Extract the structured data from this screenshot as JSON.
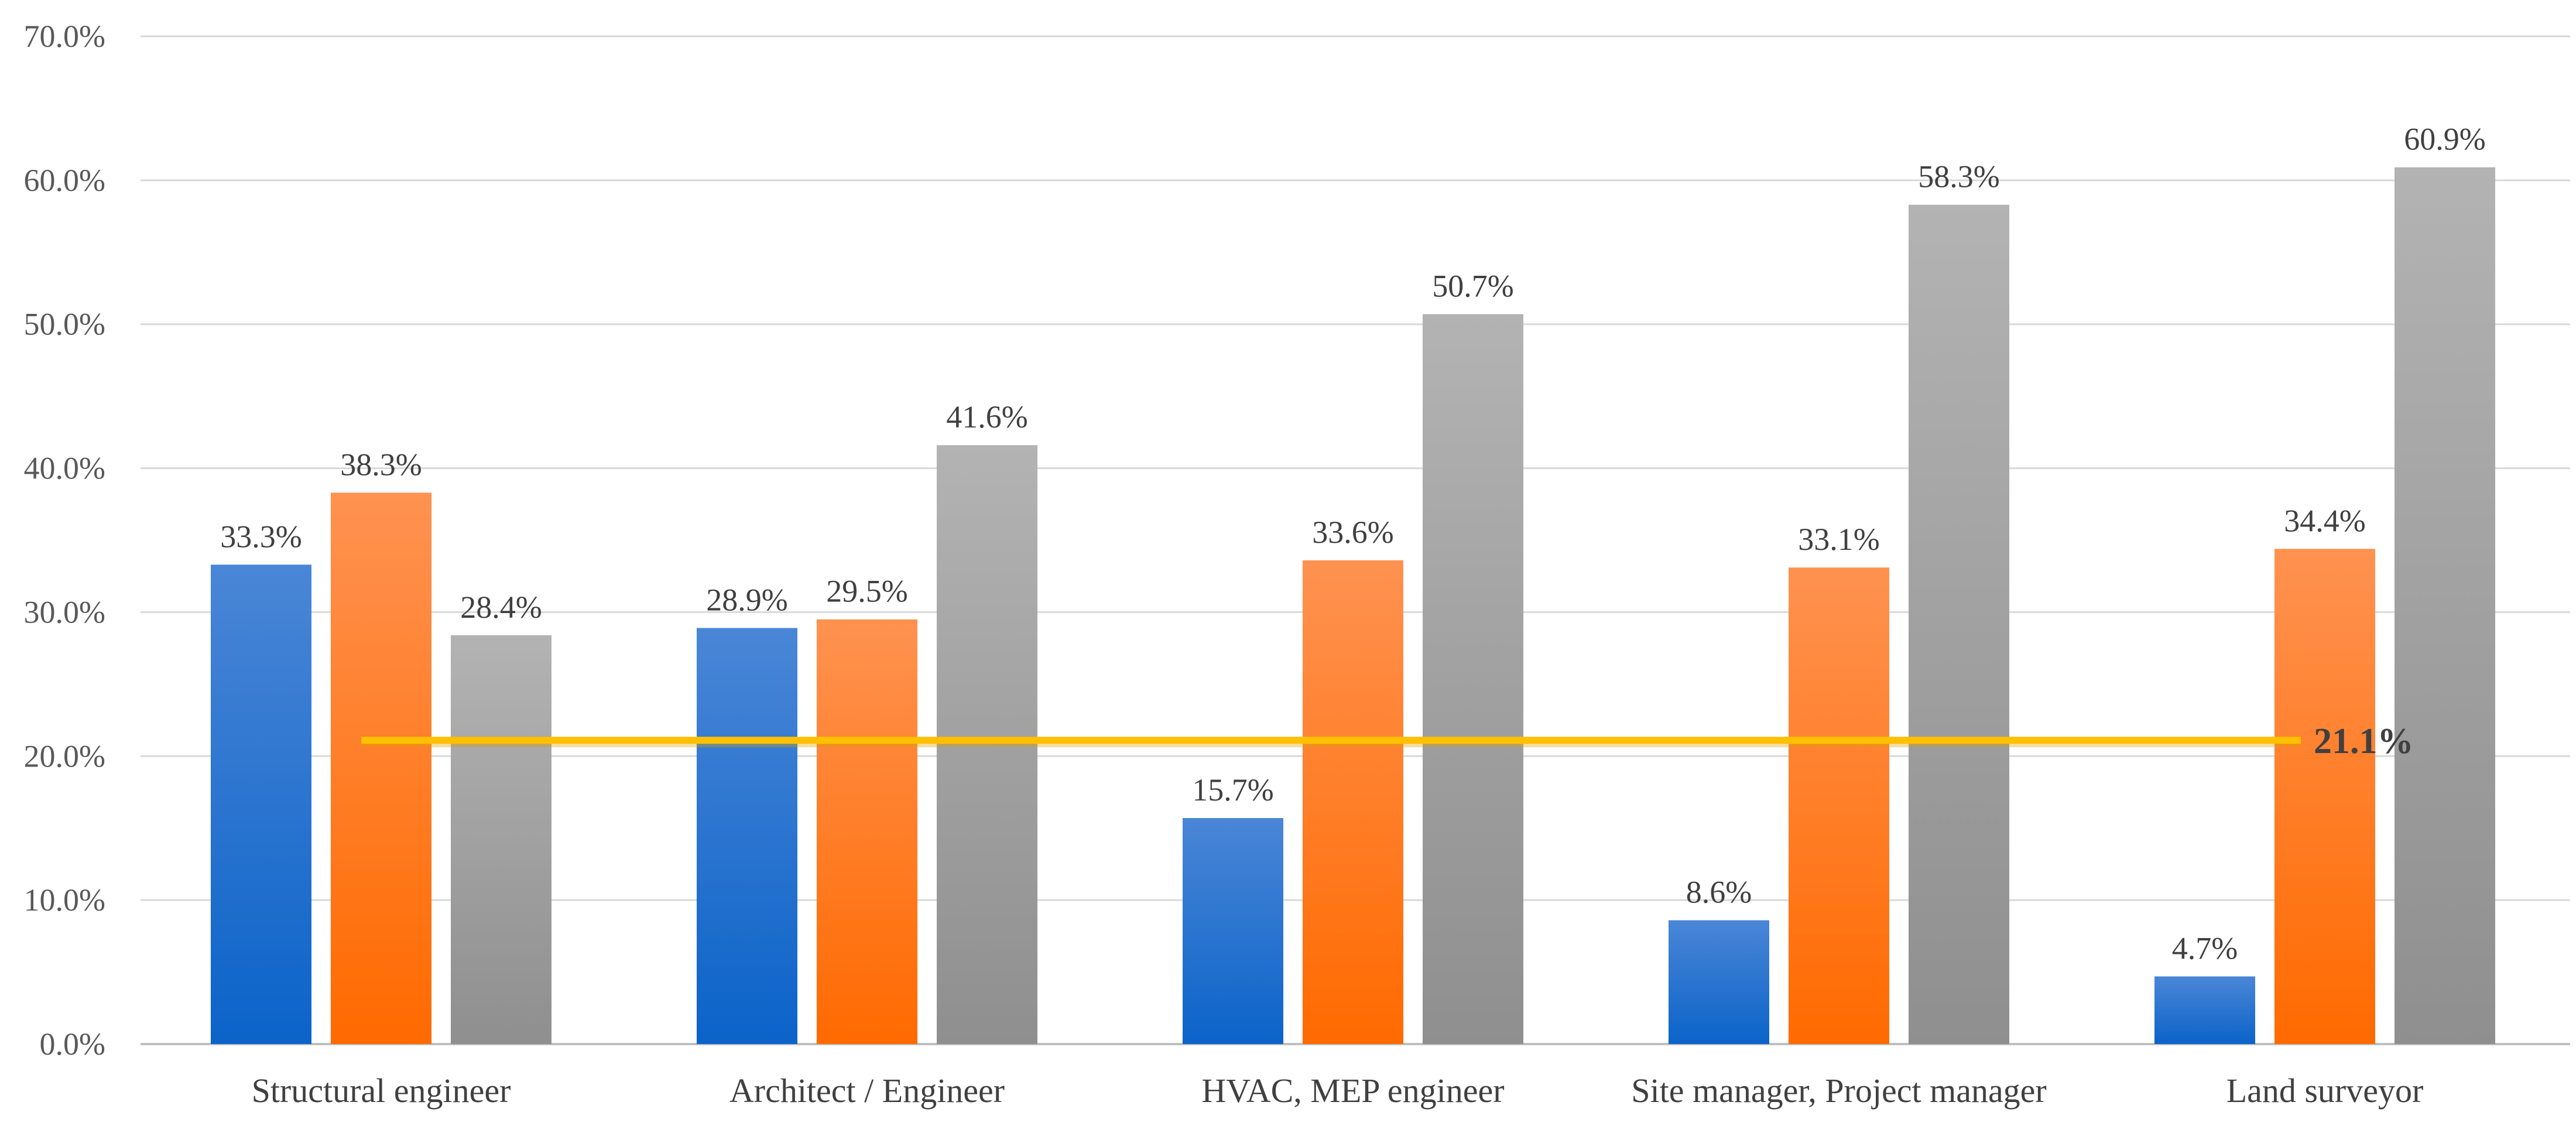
{
  "chart_data": {
    "type": "bar",
    "title": "",
    "xlabel": "",
    "ylabel": "",
    "ylim": [
      0,
      70
    ],
    "grid": true,
    "yticks": [
      "0.0%",
      "10.0%",
      "20.0%",
      "30.0%",
      "40.0%",
      "50.0%",
      "60.0%",
      "70.0%"
    ],
    "categories": [
      "Structural engineer",
      "Architect / Engineer",
      "HVAC, MEP engineer",
      "Site manager, Project manager",
      "Land surveyor"
    ],
    "series": [
      {
        "name": "Series 1",
        "color": "#1f6fd1",
        "gradient_light": "#4a86d6",
        "gradient_dark": "#0b63c9",
        "values": [
          33.3,
          28.9,
          15.7,
          8.6,
          4.7
        ],
        "labels": [
          "33.3%",
          "28.9%",
          "15.7%",
          "8.6%",
          "4.7%"
        ]
      },
      {
        "name": "Series 2",
        "color": "#ff7a1a",
        "gradient_light": "#ff9250",
        "gradient_dark": "#ff6a00",
        "values": [
          38.3,
          29.5,
          33.6,
          33.1,
          34.4
        ],
        "labels": [
          "38.3%",
          "29.5%",
          "33.6%",
          "33.1%",
          "34.4%"
        ]
      },
      {
        "name": "Series 3",
        "color": "#a6a6a6",
        "gradient_light": "#b3b3b3",
        "gradient_dark": "#8f8f8f",
        "values": [
          28.4,
          41.6,
          50.7,
          58.3,
          60.9
        ],
        "labels": [
          "28.4%",
          "41.6%",
          "50.7%",
          "58.3%",
          "60.9%"
        ]
      }
    ],
    "reference_line": {
      "value": 21.1,
      "label": "21.1%",
      "color": "#ffc000"
    }
  }
}
